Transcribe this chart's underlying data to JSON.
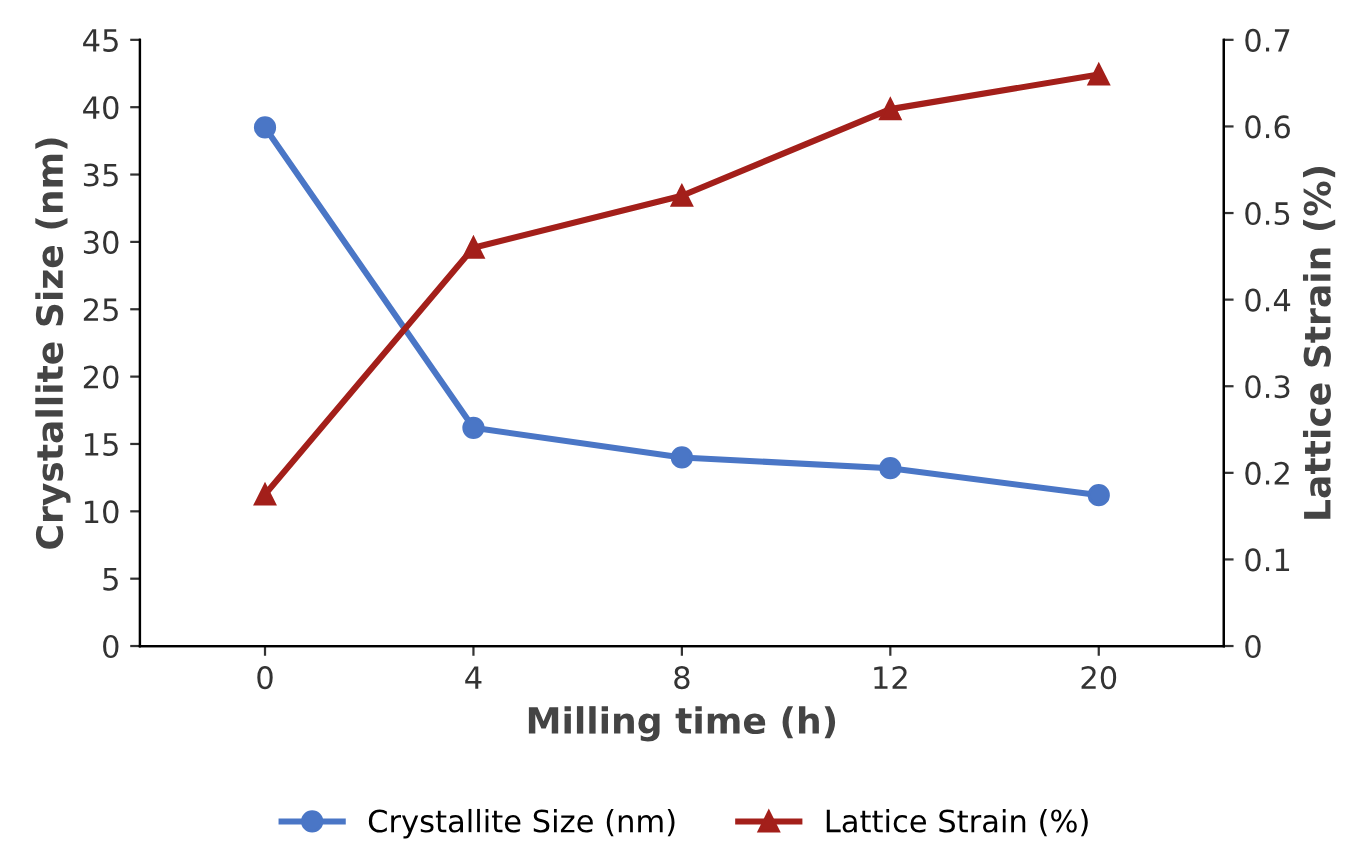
{
  "chart_data": {
    "type": "line",
    "xlabel": "Milling time (h)",
    "ylabel": "Crystallite Size (nm)",
    "y2label": "Lattice Strain (%)",
    "categories": [
      "0",
      "4",
      "8",
      "12",
      "20"
    ],
    "series": [
      {
        "name": "Crystallite Size (nm)",
        "color": "#4a76c6",
        "marker": "circle",
        "values": [
          38.5,
          16.2,
          14,
          13.2,
          11.2
        ]
      },
      {
        "name": "Lattice Strain (%)",
        "color": "#a31f1a",
        "marker": "triangle",
        "axis": "y2",
        "values": [
          0.175,
          0.46,
          0.52,
          0.62,
          0.66
        ]
      }
    ],
    "ylim": [
      0,
      45
    ],
    "yticks": [
      0,
      5,
      10,
      15,
      20,
      25,
      30,
      35,
      40,
      45
    ],
    "y2lim": [
      0,
      0.7
    ],
    "y2ticks": [
      0,
      0.1,
      0.2,
      0.3,
      0.4,
      0.5,
      0.6,
      0.7
    ],
    "grid": false,
    "legend": "bottom",
    "line_style": "solid"
  }
}
